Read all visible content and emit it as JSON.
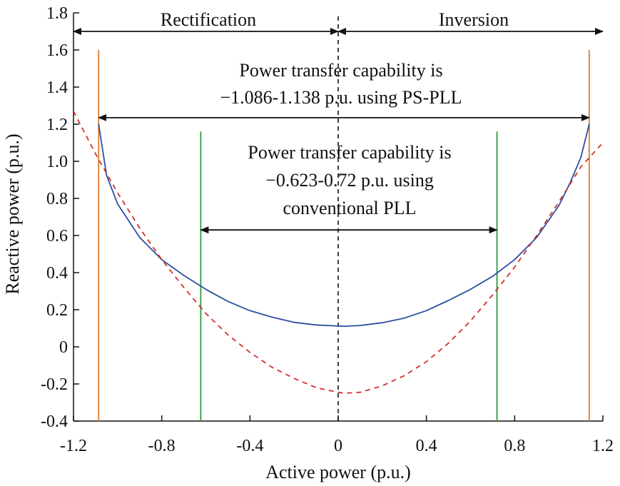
{
  "chart_data": {
    "type": "line",
    "title": "",
    "xlabel": "Active power (p.u.)",
    "ylabel": "Reactive power (p.u.)",
    "xlim": [
      -1.2,
      1.2
    ],
    "ylim": [
      -0.4,
      1.8
    ],
    "x_ticks": [
      -1.2,
      -0.8,
      -0.4,
      0,
      0.4,
      0.8,
      1.2
    ],
    "x_tick_labels": [
      "-1.2",
      "-0.8",
      "-0.4",
      "0",
      "0.4",
      "0.8",
      "1.2"
    ],
    "y_ticks": [
      -0.4,
      -0.2,
      0,
      0.2,
      0.4,
      0.6,
      0.8,
      1.0,
      1.2,
      1.4,
      1.6,
      1.8
    ],
    "y_tick_labels": [
      "-0.4",
      "-0.2",
      "0",
      "0.2",
      "0.4",
      "0.6",
      "0.8",
      "1.0",
      "1.2",
      "1.4",
      "1.6",
      "1.8"
    ],
    "grid": false,
    "colors": {
      "blue_curve": "#2b4fa0",
      "red_curve": "#d0302b",
      "orange_lines": "#e07b30",
      "green_lines": "#2e9a3a",
      "center_line": "#111111"
    },
    "series": [
      {
        "style": "solid",
        "color": "#2b4fa0",
        "x": [
          -1.086,
          -1.05,
          -1.0,
          -0.9,
          -0.8,
          -0.7,
          -0.6,
          -0.5,
          -0.4,
          -0.3,
          -0.2,
          -0.1,
          0.0,
          0.026,
          0.1,
          0.2,
          0.3,
          0.4,
          0.5,
          0.6,
          0.7,
          0.8,
          0.9,
          1.0,
          1.05,
          1.1,
          1.138
        ],
        "y": [
          1.2,
          0.925,
          0.77,
          0.59,
          0.47,
          0.385,
          0.31,
          0.245,
          0.195,
          0.16,
          0.132,
          0.118,
          0.112,
          0.111,
          0.115,
          0.13,
          0.155,
          0.195,
          0.25,
          0.31,
          0.38,
          0.47,
          0.59,
          0.76,
          0.88,
          1.02,
          1.2
        ]
      },
      {
        "style": "dashed",
        "color": "#d0302b",
        "x": [
          -1.2,
          -1.1,
          -1.0,
          -0.9,
          -0.8,
          -0.7,
          -0.6,
          -0.5,
          -0.4,
          -0.3,
          -0.2,
          -0.1,
          0.0,
          0.026,
          0.1,
          0.2,
          0.3,
          0.4,
          0.5,
          0.6,
          0.7,
          0.8,
          0.9,
          1.0,
          1.1,
          1.2
        ],
        "y": [
          1.27,
          1.04,
          0.83,
          0.64,
          0.47,
          0.32,
          0.18,
          0.065,
          -0.03,
          -0.11,
          -0.17,
          -0.22,
          -0.245,
          -0.25,
          -0.245,
          -0.21,
          -0.155,
          -0.08,
          0.02,
          0.14,
          0.28,
          0.43,
          0.6,
          0.78,
          0.97,
          1.1
        ]
      }
    ],
    "vertical_lines": [
      {
        "x": -1.086,
        "y_top": 1.6,
        "color": "#e07b30"
      },
      {
        "x": 1.138,
        "y_top": 1.6,
        "color": "#e07b30"
      },
      {
        "x": -0.623,
        "y_top": 1.16,
        "color": "#2e9a3a"
      },
      {
        "x": 0.72,
        "y_top": 1.16,
        "color": "#2e9a3a"
      },
      {
        "x": 0.0,
        "y_top": 1.8,
        "color": "#111111",
        "style": "dashed"
      }
    ],
    "arrows": [
      {
        "x1": -1.2,
        "x2": 0.0,
        "y": 1.7
      },
      {
        "x1": 0.0,
        "x2": 1.2,
        "y": 1.7
      },
      {
        "x1": -1.086,
        "x2": 1.138,
        "y": 1.235
      },
      {
        "x1": -0.623,
        "x2": 0.72,
        "y": 0.63
      }
    ],
    "annotations": {
      "rectification": "Rectification",
      "inversion": "Inversion",
      "pspll_line1": "Power transfer capability is",
      "pspll_line2": "−1.086-1.138 p.u. using PS-PLL",
      "conv_line1": "Power transfer capability is",
      "conv_line2": "−0.623-0.72 p.u. using",
      "conv_line3": "conventional PLL"
    }
  }
}
